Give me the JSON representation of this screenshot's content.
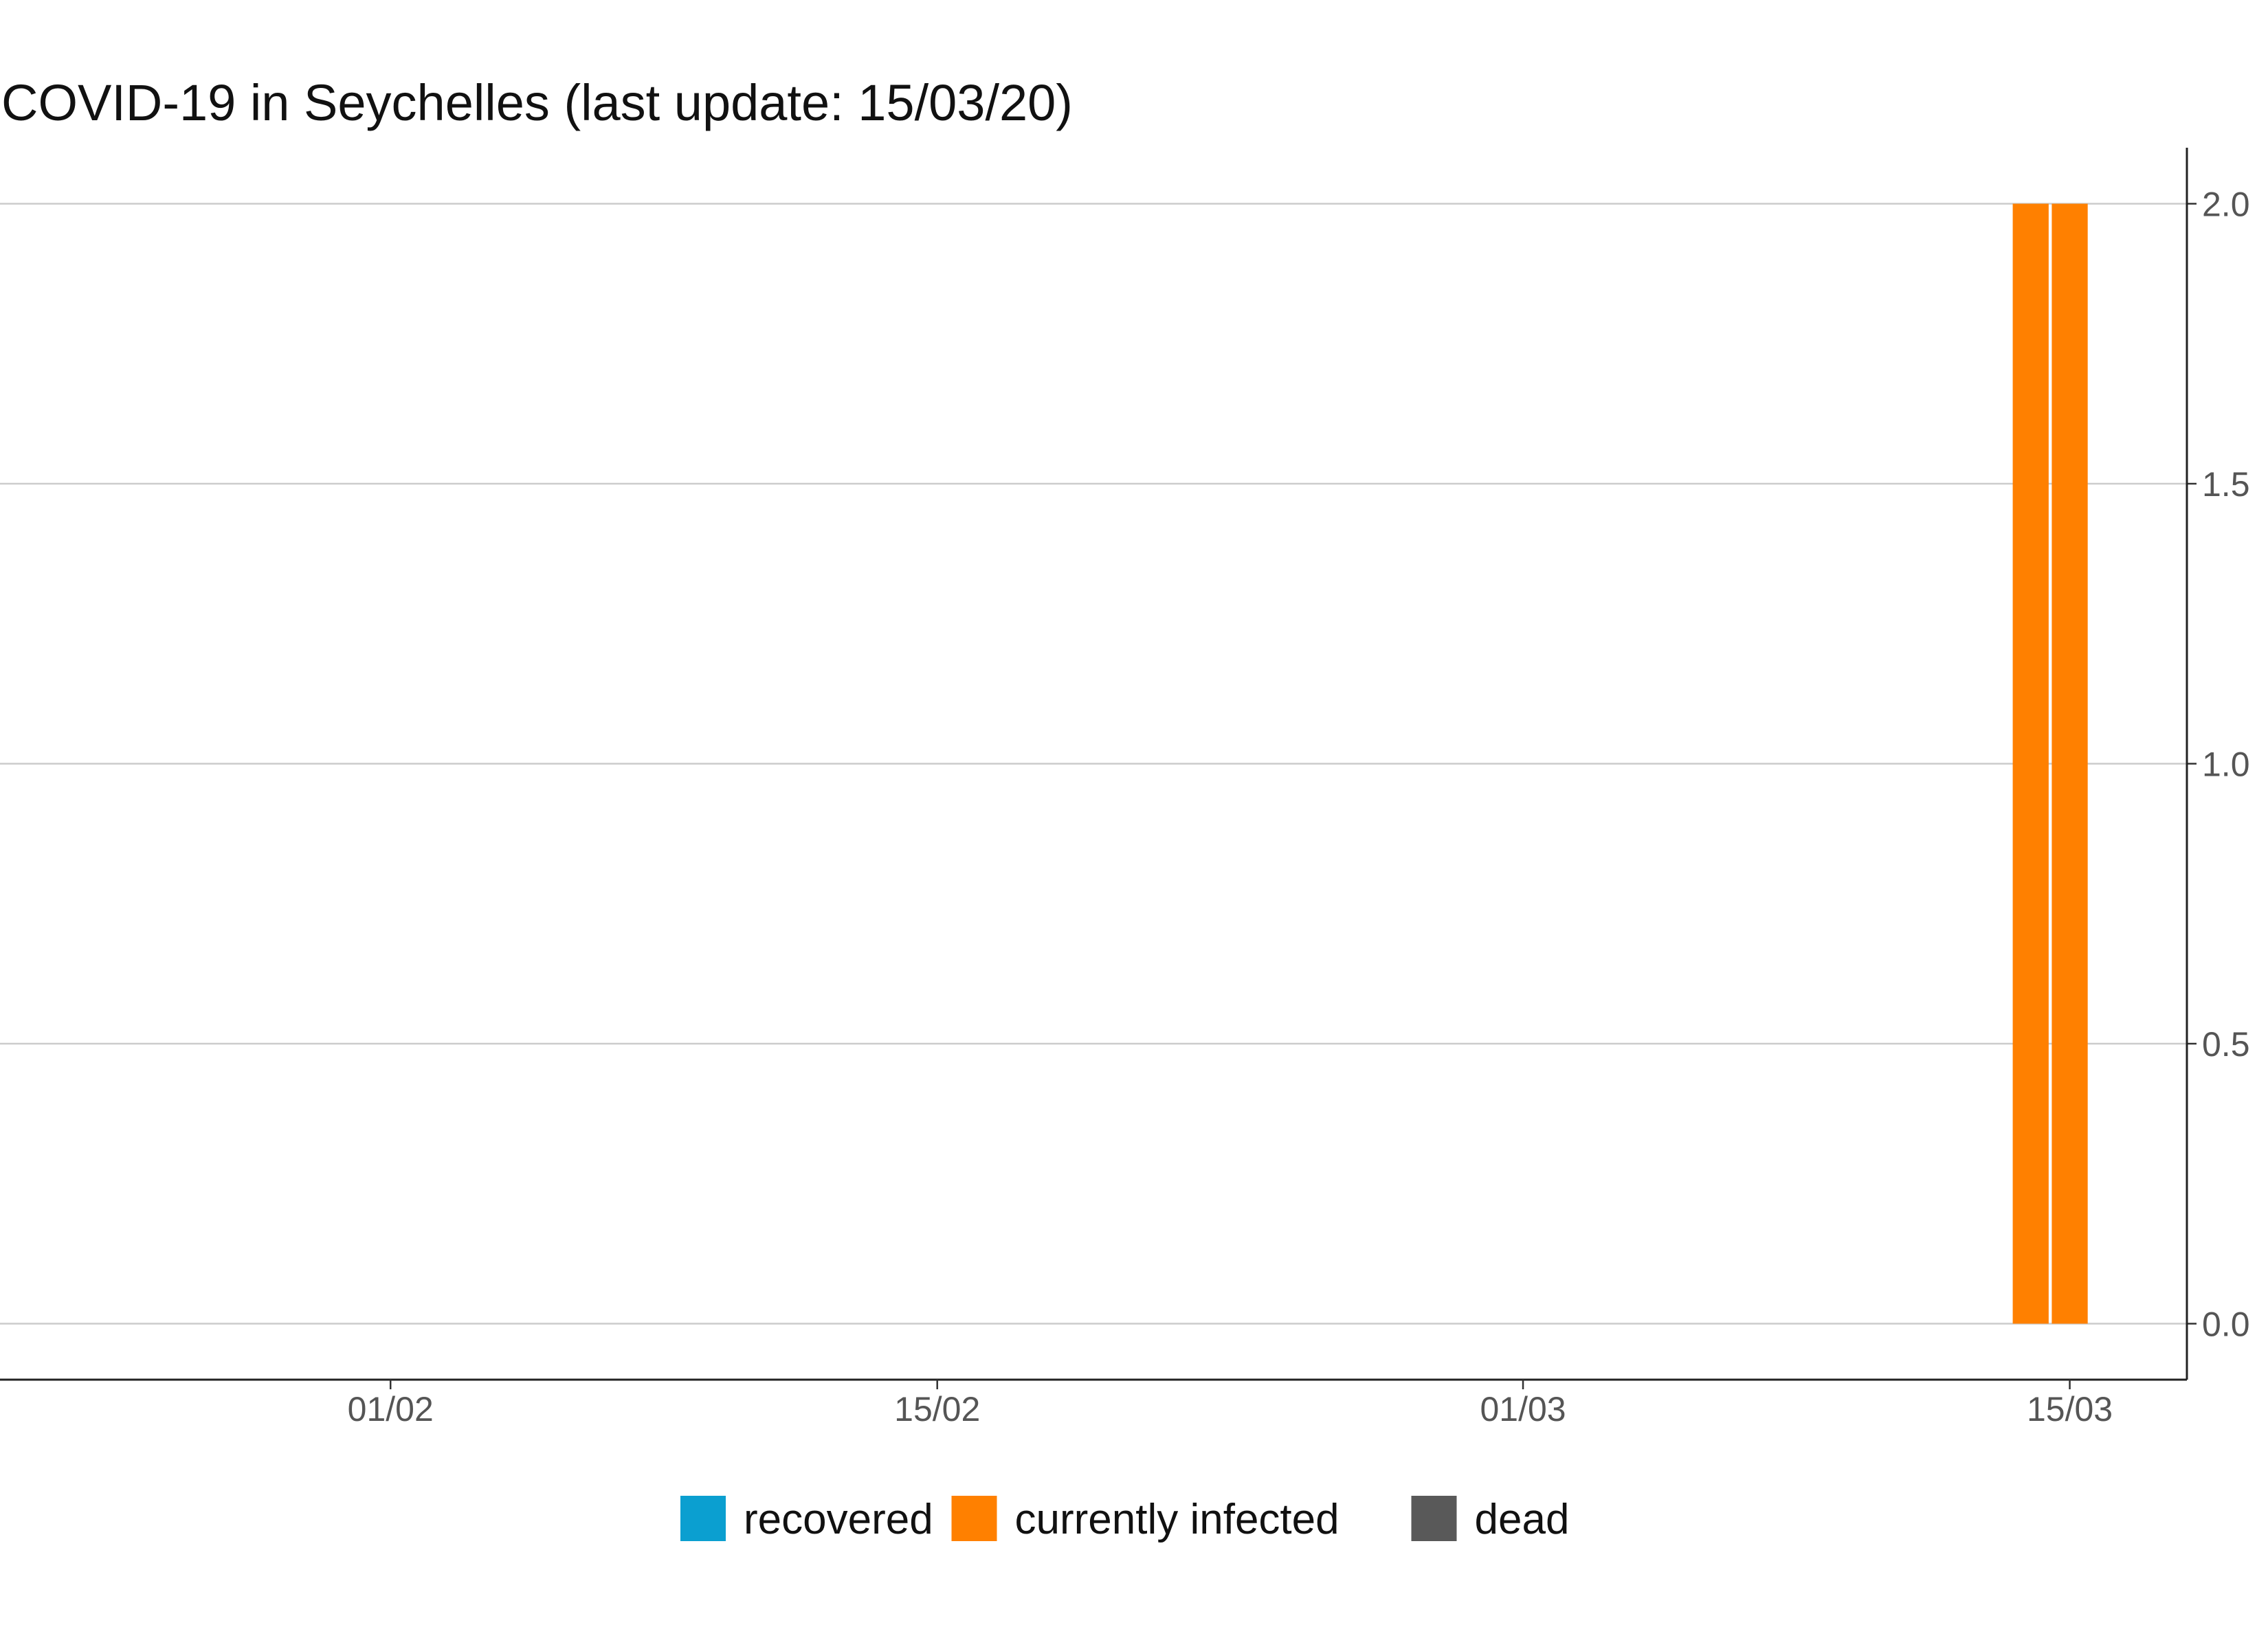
{
  "chart_data": {
    "type": "bar",
    "title": "COVID-19 in Seychelles (last update: 15/03/20)",
    "xlabel": "",
    "ylabel": "",
    "x_range": [
      "2020-01-22",
      "2020-03-18"
    ],
    "ylim": [
      -0.1,
      2.1
    ],
    "y_axis_position": "right",
    "grid": "horizontal",
    "stacked": true,
    "legend_position": "bottom",
    "x_ticks": [
      {
        "date": "2020-02-01",
        "label": "01/02"
      },
      {
        "date": "2020-02-15",
        "label": "15/02"
      },
      {
        "date": "2020-03-01",
        "label": "01/03"
      },
      {
        "date": "2020-03-15",
        "label": "15/03"
      }
    ],
    "y_ticks": [
      {
        "value": 0.0,
        "label": "0.0"
      },
      {
        "value": 0.5,
        "label": "0.5"
      },
      {
        "value": 1.0,
        "label": "1.0"
      },
      {
        "value": 1.5,
        "label": "1.5"
      },
      {
        "value": 2.0,
        "label": "2.0"
      }
    ],
    "dates": [
      "2020-03-14",
      "2020-03-15"
    ],
    "series": [
      {
        "name": "recovered",
        "color": "#0b9fd0",
        "values": [
          0,
          0
        ]
      },
      {
        "name": "currently infected",
        "color": "#ff8000",
        "values": [
          2,
          2
        ]
      },
      {
        "name": "dead",
        "color": "#595959",
        "values": [
          0,
          0
        ]
      }
    ]
  }
}
